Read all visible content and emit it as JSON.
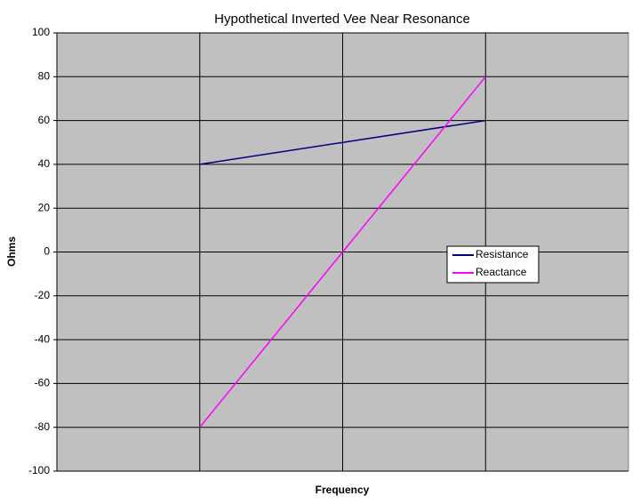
{
  "chart_data": {
    "type": "line",
    "title": "Hypothetical Inverted Vee Near Resonance",
    "x_label": "Frequency",
    "y_label": "Ohms",
    "categories": [
      null,
      null,
      null,
      null,
      null
    ],
    "series": [
      {
        "name": "Resistance",
        "color": "#000080",
        "values": [
          null,
          40,
          50,
          60,
          null
        ]
      },
      {
        "name": "Reactance",
        "color": "#ff00ff",
        "values": [
          null,
          -80,
          0,
          80,
          null
        ]
      }
    ],
    "ylim": [
      -100,
      100
    ],
    "yticks": [
      -100,
      -80,
      -60,
      -40,
      -20,
      0,
      20,
      40,
      60,
      80,
      100
    ],
    "grid": true,
    "legend": "right"
  }
}
